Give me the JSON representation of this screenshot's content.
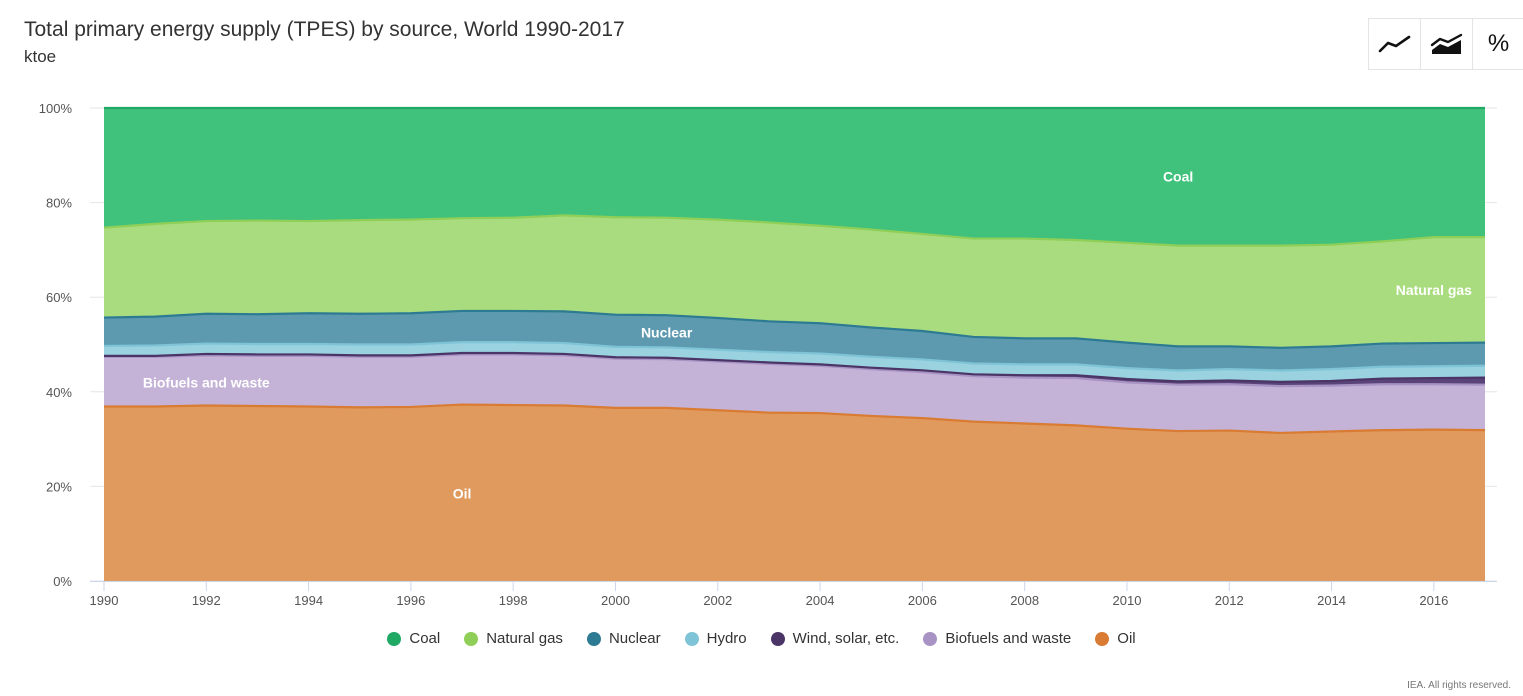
{
  "title": "Total primary energy supply (TPES) by source, World 1990-2017",
  "subtitle": "ktoe",
  "toolbar": {
    "line_icon": "line-chart-icon",
    "area_icon": "area-chart-icon",
    "percent_label": "%"
  },
  "credits": "IEA. All rights reserved.",
  "chart_data": {
    "type": "area",
    "stacking": "percent",
    "x": [
      1990,
      1991,
      1992,
      1993,
      1994,
      1995,
      1996,
      1997,
      1998,
      1999,
      2000,
      2001,
      2002,
      2003,
      2004,
      2005,
      2006,
      2007,
      2008,
      2009,
      2010,
      2011,
      2012,
      2013,
      2014,
      2015,
      2016,
      2017
    ],
    "y_tick_labels": [
      "0%",
      "20%",
      "40%",
      "60%",
      "80%",
      "100%"
    ],
    "x_tick_labels": [
      "1990",
      "1992",
      "1994",
      "1996",
      "1998",
      "2000",
      "2002",
      "2004",
      "2006",
      "2008",
      "2010",
      "2012",
      "2014",
      "2016"
    ],
    "ylim": [
      0,
      100
    ],
    "grid": true,
    "legend_position": "bottom",
    "series": [
      {
        "name": "Oil",
        "color": "#e09a5d",
        "line": "#d97b32",
        "values": [
          36.9,
          36.9,
          37.1,
          37.0,
          36.9,
          36.7,
          36.8,
          37.3,
          37.2,
          37.1,
          36.6,
          36.6,
          36.1,
          35.6,
          35.5,
          34.9,
          34.4,
          33.7,
          33.3,
          32.9,
          32.2,
          31.7,
          31.8,
          31.3,
          31.6,
          31.9,
          32.0,
          31.9
        ]
      },
      {
        "name": "Biofuels and waste",
        "color": "#c4b3d6",
        "line": "#a893c4",
        "values": [
          10.5,
          10.5,
          10.6,
          10.6,
          10.7,
          10.7,
          10.6,
          10.6,
          10.7,
          10.6,
          10.4,
          10.3,
          10.3,
          10.3,
          10.0,
          9.9,
          9.7,
          9.6,
          9.7,
          10.0,
          9.8,
          9.8,
          9.8,
          9.9,
          9.7,
          9.7,
          9.6,
          9.6
        ]
      },
      {
        "name": "Wind, solar, etc.",
        "color": "#5a4378",
        "line": "#4b3566",
        "values": [
          0.2,
          0.2,
          0.3,
          0.3,
          0.3,
          0.3,
          0.3,
          0.3,
          0.3,
          0.3,
          0.3,
          0.3,
          0.3,
          0.3,
          0.3,
          0.3,
          0.4,
          0.4,
          0.5,
          0.6,
          0.7,
          0.7,
          0.8,
          0.9,
          1.0,
          1.2,
          1.3,
          1.5
        ]
      },
      {
        "name": "Hydro",
        "color": "#9ad2e0",
        "line": "#7fc3d6",
        "values": [
          2.1,
          2.2,
          2.2,
          2.2,
          2.2,
          2.3,
          2.3,
          2.3,
          2.3,
          2.3,
          2.2,
          2.2,
          2.2,
          2.2,
          2.3,
          2.3,
          2.3,
          2.3,
          2.3,
          2.3,
          2.3,
          2.3,
          2.4,
          2.4,
          2.5,
          2.5,
          2.5,
          2.5
        ]
      },
      {
        "name": "Nuclear",
        "color": "#5d9aaf",
        "line": "#2d7a93",
        "values": [
          6.0,
          6.1,
          6.3,
          6.3,
          6.5,
          6.5,
          6.6,
          6.6,
          6.6,
          6.7,
          6.8,
          6.8,
          6.7,
          6.5,
          6.4,
          6.2,
          6.0,
          5.6,
          5.5,
          5.5,
          5.4,
          5.1,
          4.8,
          4.8,
          4.8,
          4.9,
          4.9,
          4.9
        ]
      },
      {
        "name": "Natural gas",
        "color": "#a9dc7e",
        "line": "#8fcf57",
        "values": [
          19.0,
          19.6,
          19.6,
          19.8,
          19.5,
          19.8,
          19.8,
          19.6,
          19.7,
          20.3,
          20.6,
          20.6,
          20.8,
          20.9,
          20.6,
          20.7,
          20.5,
          20.8,
          21.1,
          20.8,
          21.1,
          21.3,
          21.3,
          21.6,
          21.5,
          21.6,
          22.4,
          22.3
        ]
      },
      {
        "name": "Coal",
        "color": "#40c27c",
        "line": "#20a865",
        "values": [
          25.3,
          24.5,
          23.9,
          23.8,
          23.9,
          23.7,
          23.6,
          23.3,
          23.2,
          22.7,
          23.1,
          23.2,
          23.6,
          24.2,
          24.9,
          25.7,
          26.6,
          27.6,
          27.6,
          27.9,
          28.5,
          29.1,
          29.1,
          29.1,
          28.9,
          28.2,
          27.3,
          27.3
        ]
      }
    ],
    "annotations": [
      {
        "text": "Coal",
        "x": 2011,
        "y": 85.5
      },
      {
        "text": "Natural gas",
        "x": 2016,
        "y": 61.5
      },
      {
        "text": "Nuclear",
        "x": 2001,
        "y": 52.5
      },
      {
        "text": "Biofuels and waste",
        "x": 1992,
        "y": 42
      },
      {
        "text": "Oil",
        "x": 1997,
        "y": 18.5
      }
    ]
  }
}
